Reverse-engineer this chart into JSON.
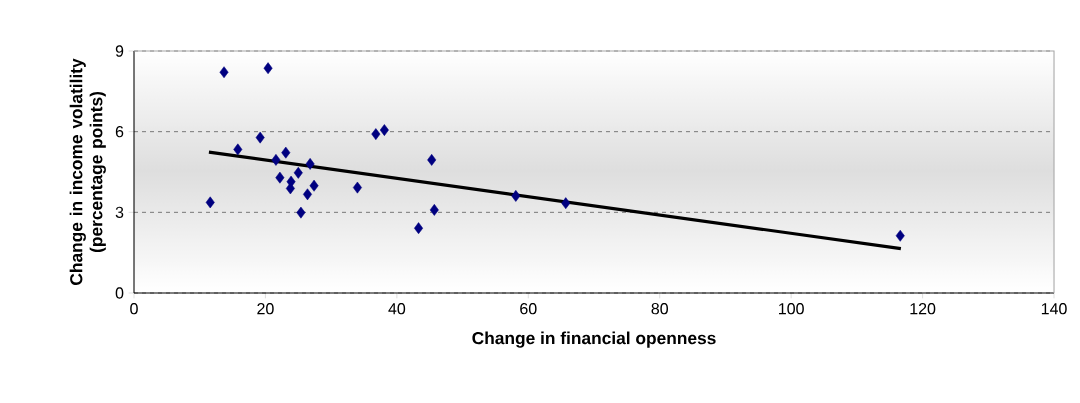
{
  "chart_data": {
    "type": "scatter",
    "xlabel": "Change in financial openness",
    "ylabel": "Change in income volatility (percentage points)",
    "xlim": [
      0,
      140
    ],
    "xticks": [
      0,
      20,
      40,
      60,
      80,
      100,
      120,
      140
    ],
    "ylim": [
      0,
      9
    ],
    "yticks": [
      0,
      3,
      6,
      9
    ],
    "grid": "y",
    "marker": "diamond",
    "series": [
      {
        "type": "scatter",
        "color": "#000080",
        "x": [
          11.6,
          13.7,
          20.4,
          15.8,
          19.2,
          23.1,
          21.6,
          26.8,
          25.0,
          22.2,
          23.9,
          23.8,
          27.4,
          26.4,
          25.4,
          34.0,
          36.8,
          38.1,
          43.3,
          45.3,
          45.7,
          58.1,
          65.7,
          116.6
        ],
        "values": [
          3.37,
          8.21,
          8.36,
          5.34,
          5.78,
          5.22,
          4.95,
          4.8,
          4.47,
          4.29,
          4.14,
          3.89,
          3.99,
          3.67,
          2.99,
          3.92,
          5.91,
          6.06,
          2.41,
          4.95,
          3.09,
          3.61,
          3.34,
          2.13
        ]
      },
      {
        "type": "line",
        "color": "#000000",
        "marker": "none",
        "line_style": "solid",
        "x": [
          11.4,
          116.7
        ],
        "values": [
          5.24,
          1.65
        ]
      }
    ]
  }
}
